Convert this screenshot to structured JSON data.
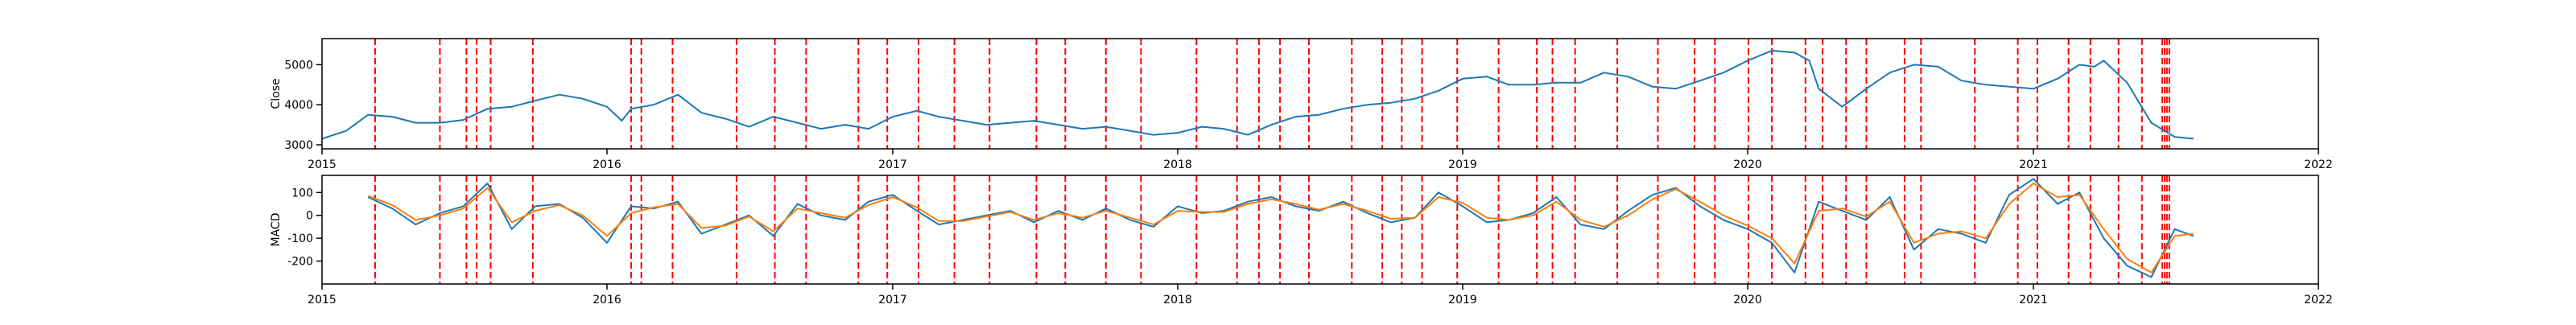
{
  "chart_data": [
    {
      "type": "line",
      "title": "",
      "xlabel": "",
      "ylabel": "Close",
      "xlim": [
        "2015-01-01",
        "2022-01-01"
      ],
      "ylim": [
        2900,
        5650
      ],
      "x_ticks": [
        "2015",
        "2016",
        "2017",
        "2018",
        "2019",
        "2020",
        "2021",
        "2022"
      ],
      "y_ticks": [
        3000,
        4000,
        5000
      ],
      "grid": false,
      "legend": "none",
      "colors": {
        "line": "#1f77b4",
        "markers": "#ff0000"
      },
      "series": [
        {
          "name": "",
          "x": [
            "2015-01-01",
            "2015-02-01",
            "2015-03-01",
            "2015-04-01",
            "2015-05-01",
            "2015-06-01",
            "2015-07-01",
            "2015-08-01",
            "2015-09-01",
            "2015-10-01",
            "2015-11-01",
            "2015-12-01",
            "2016-01-01",
            "2016-01-20",
            "2016-02-01",
            "2016-03-01",
            "2016-04-01",
            "2016-05-01",
            "2016-06-01",
            "2016-07-01",
            "2016-08-01",
            "2016-09-01",
            "2016-10-01",
            "2016-11-01",
            "2016-12-01",
            "2017-01-01",
            "2017-02-01",
            "2017-03-01",
            "2017-04-01",
            "2017-05-01",
            "2017-06-01",
            "2017-07-01",
            "2017-08-01",
            "2017-09-01",
            "2017-10-01",
            "2017-11-01",
            "2017-12-01",
            "2018-01-01",
            "2018-02-01",
            "2018-03-01",
            "2018-04-01",
            "2018-05-01",
            "2018-06-01",
            "2018-07-01",
            "2018-08-01",
            "2018-09-01",
            "2018-10-01",
            "2018-11-01",
            "2018-12-01",
            "2019-01-01",
            "2019-02-01",
            "2019-03-01",
            "2019-04-01",
            "2019-05-01",
            "2019-06-01",
            "2019-07-01",
            "2019-08-01",
            "2019-09-01",
            "2019-10-01",
            "2019-11-01",
            "2019-12-01",
            "2020-01-01",
            "2020-02-01",
            "2020-03-01",
            "2020-03-20",
            "2020-04-01",
            "2020-05-01",
            "2020-06-01",
            "2020-07-01",
            "2020-08-01",
            "2020-09-01",
            "2020-10-01",
            "2020-11-01",
            "2020-12-01",
            "2021-01-01",
            "2021-02-01",
            "2021-03-01",
            "2021-03-20",
            "2021-04-01",
            "2021-05-01",
            "2021-06-01",
            "2021-07-01",
            "2021-07-25"
          ],
          "y": [
            3150,
            3350,
            3750,
            3700,
            3550,
            3550,
            3620,
            3900,
            3950,
            4100,
            4250,
            4150,
            3950,
            3600,
            3900,
            4000,
            4250,
            3800,
            3650,
            3450,
            3700,
            3550,
            3400,
            3500,
            3400,
            3700,
            3850,
            3700,
            3600,
            3500,
            3550,
            3600,
            3500,
            3400,
            3450,
            3350,
            3250,
            3300,
            3450,
            3400,
            3250,
            3500,
            3700,
            3750,
            3900,
            4000,
            4050,
            4150,
            4350,
            4650,
            4700,
            4500,
            4500,
            4550,
            4550,
            4800,
            4700,
            4450,
            4400,
            4600,
            4800,
            5100,
            5350,
            5300,
            5100,
            4400,
            3950,
            4400,
            4800,
            5000,
            4950,
            4600,
            4500,
            4450,
            4400,
            4650,
            5000,
            4950,
            5100,
            4550,
            3550,
            3200,
            3150
          ]
        }
      ],
      "markers": [
        "2015-03-10",
        "2015-06-01",
        "2015-07-05",
        "2015-07-18",
        "2015-08-05",
        "2015-09-28",
        "2016-02-01",
        "2016-02-14",
        "2016-03-25",
        "2016-06-15",
        "2016-08-03",
        "2016-09-12",
        "2016-11-18",
        "2016-12-25",
        "2017-02-03",
        "2017-03-21",
        "2017-05-05",
        "2017-07-04",
        "2017-08-10",
        "2017-10-01",
        "2017-11-15",
        "2018-01-25",
        "2018-03-18",
        "2018-04-15",
        "2018-05-12",
        "2018-06-18",
        "2018-08-12",
        "2018-09-20",
        "2018-10-15",
        "2018-11-10",
        "2018-12-25",
        "2019-02-16",
        "2019-04-06",
        "2019-04-26",
        "2019-05-25",
        "2019-07-18",
        "2019-09-08",
        "2019-10-25",
        "2019-11-20",
        "2020-01-02",
        "2020-02-01",
        "2020-03-15",
        "2020-04-06",
        "2020-05-06",
        "2020-06-01",
        "2020-07-20",
        "2020-08-10",
        "2020-10-18",
        "2020-12-12",
        "2021-01-06",
        "2021-02-15",
        "2021-03-15",
        "2021-04-20",
        "2021-05-20",
        "2021-06-15",
        "2021-06-18",
        "2021-06-21",
        "2021-06-24"
      ]
    },
    {
      "type": "line",
      "title": "",
      "xlabel": "",
      "ylabel": "MACD",
      "xlim": [
        "2015-01-01",
        "2022-01-01"
      ],
      "ylim": [
        -300,
        175
      ],
      "x_ticks": [
        "2015",
        "2016",
        "2017",
        "2018",
        "2019",
        "2020",
        "2021",
        "2022"
      ],
      "y_ticks": [
        -200,
        -100,
        0,
        100
      ],
      "grid": false,
      "legend": "none",
      "colors": {
        "macd": "#1f77b4",
        "signal": "#ff7f0e",
        "markers": "#ff0000"
      },
      "series": [
        {
          "name": "",
          "x": [
            "2015-03-01",
            "2015-04-01",
            "2015-05-01",
            "2015-06-01",
            "2015-07-01",
            "2015-08-01",
            "2015-09-01",
            "2015-10-01",
            "2015-11-01",
            "2015-12-01",
            "2016-01-01",
            "2016-02-01",
            "2016-03-01",
            "2016-04-01",
            "2016-05-01",
            "2016-06-01",
            "2016-07-01",
            "2016-08-01",
            "2016-09-01",
            "2016-10-01",
            "2016-11-01",
            "2016-12-01",
            "2017-01-01",
            "2017-02-01",
            "2017-03-01",
            "2017-04-01",
            "2017-05-01",
            "2017-06-01",
            "2017-07-01",
            "2017-08-01",
            "2017-09-01",
            "2017-10-01",
            "2017-11-01",
            "2017-12-01",
            "2018-01-01",
            "2018-02-01",
            "2018-03-01",
            "2018-04-01",
            "2018-05-01",
            "2018-06-01",
            "2018-07-01",
            "2018-08-01",
            "2018-09-01",
            "2018-10-01",
            "2018-11-01",
            "2018-12-01",
            "2019-01-01",
            "2019-02-01",
            "2019-03-01",
            "2019-04-01",
            "2019-05-01",
            "2019-06-01",
            "2019-07-01",
            "2019-08-01",
            "2019-09-01",
            "2019-10-01",
            "2019-11-01",
            "2019-12-01",
            "2020-01-01",
            "2020-02-01",
            "2020-03-01",
            "2020-04-01",
            "2020-05-01",
            "2020-06-01",
            "2020-07-01",
            "2020-08-01",
            "2020-09-01",
            "2020-10-01",
            "2020-11-01",
            "2020-12-01",
            "2021-01-01",
            "2021-02-01",
            "2021-03-01",
            "2021-04-01",
            "2021-05-01",
            "2021-06-01",
            "2021-07-01",
            "2021-07-25"
          ],
          "y": [
            80,
            30,
            -40,
            10,
            40,
            140,
            -60,
            40,
            50,
            -10,
            -120,
            40,
            30,
            60,
            -80,
            -40,
            0,
            -90,
            50,
            0,
            -20,
            60,
            90,
            20,
            -40,
            -20,
            0,
            20,
            -30,
            20,
            -20,
            30,
            -20,
            -50,
            40,
            10,
            20,
            60,
            80,
            40,
            20,
            60,
            10,
            -30,
            -10,
            100,
            40,
            -30,
            -20,
            10,
            80,
            -40,
            -60,
            20,
            90,
            120,
            40,
            -20,
            -60,
            -120,
            -250,
            60,
            20,
            -20,
            80,
            -150,
            -60,
            -80,
            -120,
            90,
            160,
            50,
            100,
            -100,
            -220,
            -270,
            -60,
            -90
          ]
        },
        {
          "name": "",
          "x": [
            "2015-03-01",
            "2015-04-01",
            "2015-05-01",
            "2015-06-01",
            "2015-07-01",
            "2015-08-01",
            "2015-09-01",
            "2015-10-01",
            "2015-11-01",
            "2015-12-01",
            "2016-01-01",
            "2016-02-01",
            "2016-03-01",
            "2016-04-01",
            "2016-05-01",
            "2016-06-01",
            "2016-07-01",
            "2016-08-01",
            "2016-09-01",
            "2016-10-01",
            "2016-11-01",
            "2016-12-01",
            "2017-01-01",
            "2017-02-01",
            "2017-03-01",
            "2017-04-01",
            "2017-05-01",
            "2017-06-01",
            "2017-07-01",
            "2017-08-01",
            "2017-09-01",
            "2017-10-01",
            "2017-11-01",
            "2017-12-01",
            "2018-01-01",
            "2018-02-01",
            "2018-03-01",
            "2018-04-01",
            "2018-05-01",
            "2018-06-01",
            "2018-07-01",
            "2018-08-01",
            "2018-09-01",
            "2018-10-01",
            "2018-11-01",
            "2018-12-01",
            "2019-01-01",
            "2019-02-01",
            "2019-03-01",
            "2019-04-01",
            "2019-05-01",
            "2019-06-01",
            "2019-07-01",
            "2019-08-01",
            "2019-09-01",
            "2019-10-01",
            "2019-11-01",
            "2019-12-01",
            "2020-01-01",
            "2020-02-01",
            "2020-03-01",
            "2020-04-01",
            "2020-05-01",
            "2020-06-01",
            "2020-07-01",
            "2020-08-01",
            "2020-09-01",
            "2020-10-01",
            "2020-11-01",
            "2020-12-01",
            "2021-01-01",
            "2021-02-01",
            "2021-03-01",
            "2021-04-01",
            "2021-05-01",
            "2021-06-01",
            "2021-07-01",
            "2021-07-25"
          ],
          "y": [
            85,
            45,
            -20,
            0,
            30,
            120,
            -30,
            20,
            45,
            0,
            -90,
            10,
            35,
            50,
            -55,
            -45,
            -5,
            -70,
            30,
            10,
            -10,
            45,
            80,
            35,
            -25,
            -25,
            -5,
            15,
            -20,
            10,
            -10,
            20,
            -10,
            -40,
            20,
            15,
            15,
            50,
            70,
            50,
            25,
            50,
            20,
            -15,
            -10,
            80,
            55,
            -10,
            -20,
            0,
            60,
            -20,
            -50,
            0,
            70,
            115,
            60,
            0,
            -45,
            -100,
            -210,
            20,
            30,
            -5,
            60,
            -120,
            -80,
            -70,
            -100,
            50,
            140,
            80,
            90,
            -60,
            -190,
            -250,
            -90,
            -80
          ]
        }
      ],
      "markers": [
        "2015-03-10",
        "2015-06-01",
        "2015-07-05",
        "2015-07-18",
        "2015-08-05",
        "2015-09-28",
        "2016-02-01",
        "2016-02-14",
        "2016-03-25",
        "2016-06-15",
        "2016-08-03",
        "2016-09-12",
        "2016-11-18",
        "2016-12-25",
        "2017-02-03",
        "2017-03-21",
        "2017-05-05",
        "2017-07-04",
        "2017-08-10",
        "2017-10-01",
        "2017-11-15",
        "2018-01-25",
        "2018-03-18",
        "2018-04-15",
        "2018-05-12",
        "2018-06-18",
        "2018-08-12",
        "2018-09-20",
        "2018-10-15",
        "2018-11-10",
        "2018-12-25",
        "2019-02-16",
        "2019-04-06",
        "2019-04-26",
        "2019-05-25",
        "2019-07-18",
        "2019-09-08",
        "2019-10-25",
        "2019-11-20",
        "2020-01-02",
        "2020-02-01",
        "2020-03-15",
        "2020-04-06",
        "2020-05-06",
        "2020-06-01",
        "2020-07-20",
        "2020-08-10",
        "2020-10-18",
        "2020-12-12",
        "2021-01-06",
        "2021-02-15",
        "2021-03-15",
        "2021-04-20",
        "2021-05-20",
        "2021-06-15",
        "2021-06-18",
        "2021-06-21",
        "2021-06-24"
      ]
    }
  ]
}
